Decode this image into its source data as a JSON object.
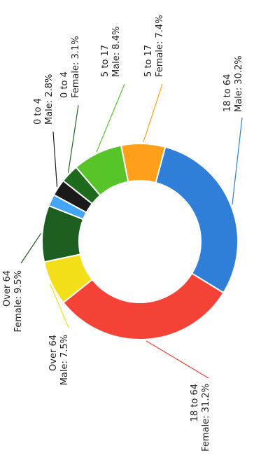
{
  "chart_data": {
    "type": "pie",
    "donut": true,
    "orientation": "rotated-90-clockwise",
    "slices": [
      {
        "line1": "18 to 64",
        "line2": "Male: 30.2%",
        "value": 30.2,
        "color": "#2f7ed8"
      },
      {
        "line1": "18 to 64",
        "line2": "Female: 31.2%",
        "value": 31.2,
        "color": "#f44336"
      },
      {
        "line1": "Over 64",
        "line2": "Male: 7.5%",
        "value": 7.5,
        "color": "#f4e01a"
      },
      {
        "line1": "Over 64",
        "line2": "Female: 9.5%",
        "value": 9.5,
        "color": "#1b5e20"
      },
      {
        "line1": "",
        "line2": "",
        "value": 2.0,
        "color": "#42a5f5"
      },
      {
        "line1": "0 to 4",
        "line2": "Male: 2.8%",
        "value": 2.8,
        "color": "#1a1a1a"
      },
      {
        "line1": "0 to 4",
        "line2": "Female: 3.1%",
        "value": 3.1,
        "color": "#1e6b1e"
      },
      {
        "line1": "5 to 17",
        "line2": "Male: 8.4%",
        "value": 8.4,
        "color": "#57c52a"
      },
      {
        "line1": "5 to 17",
        "line2": "Female: 7.4%",
        "value": 7.4,
        "color": "#ff9f1a"
      }
    ]
  }
}
